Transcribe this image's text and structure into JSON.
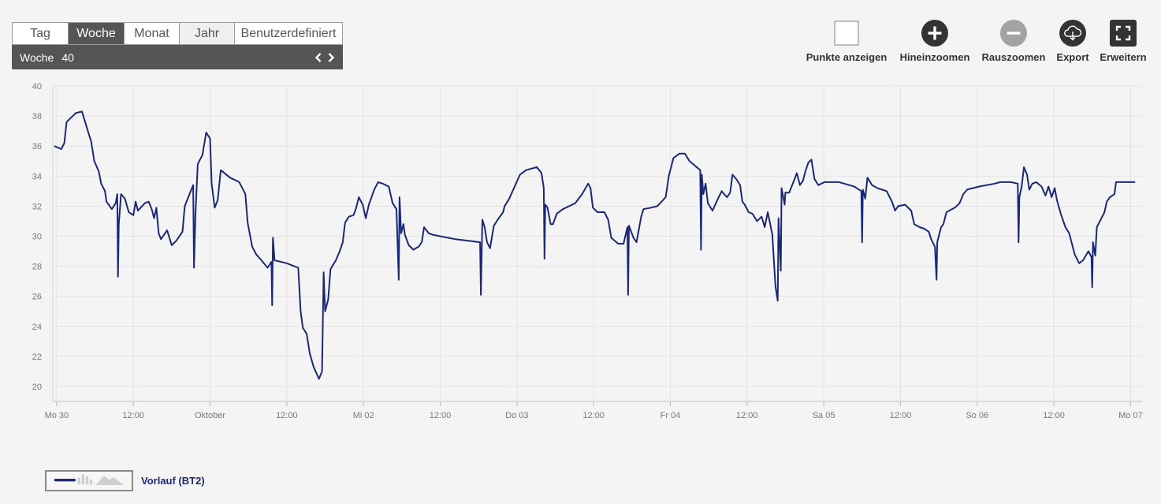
{
  "period_tabs": [
    {
      "label": "Tag",
      "state": "normal"
    },
    {
      "label": "Woche",
      "state": "active"
    },
    {
      "label": "Monat",
      "state": "normal"
    },
    {
      "label": "Jahr",
      "state": "light"
    },
    {
      "label": "Benutzerdefiniert",
      "state": "normal"
    }
  ],
  "period_nav": {
    "unit_label": "Woche",
    "value": "40"
  },
  "toolbar": {
    "show_points_label": "Punkte anzeigen",
    "zoom_in_label": "Hineinzoomen",
    "zoom_out_label": "Rauszoomen",
    "export_label": "Export",
    "expand_label": "Erweitern"
  },
  "colors": {
    "series": "#1b2873",
    "tab_active": "#555555",
    "grid": "#e3e3e3"
  },
  "chart_data": {
    "type": "line",
    "x_unit": "hours since first tick (Mo 30)",
    "xlim": [
      -0.5,
      141.5
    ],
    "ylim": [
      19,
      40
    ],
    "y_ticks": [
      20,
      22,
      24,
      26,
      28,
      30,
      32,
      34,
      36,
      38,
      40
    ],
    "x_ticks": [
      {
        "x": 0,
        "label": "Mo 30"
      },
      {
        "x": 10,
        "label": "12:00"
      },
      {
        "x": 20,
        "label": "Oktober"
      },
      {
        "x": 30,
        "label": "12:00"
      },
      {
        "x": 40,
        "label": "Mi 02"
      },
      {
        "x": 50,
        "label": "12:00"
      },
      {
        "x": 60,
        "label": "Do 03"
      },
      {
        "x": 70,
        "label": "12:00"
      },
      {
        "x": 80,
        "label": "Fr 04"
      },
      {
        "x": 90,
        "label": "12:00"
      },
      {
        "x": 100,
        "label": "Sa 05"
      },
      {
        "x": 110,
        "label": "12:00"
      },
      {
        "x": 120,
        "label": "So 06"
      },
      {
        "x": 130,
        "label": "12:00"
      },
      {
        "x": 140,
        "label": "Mo 07"
      }
    ],
    "grid": true,
    "series": [
      {
        "name": "Vorlauf (BT2)",
        "points": [
          [
            -0.3,
            36.0
          ],
          [
            0.6,
            35.8
          ],
          [
            1.0,
            36.2
          ],
          [
            1.3,
            37.6
          ],
          [
            2.5,
            38.2
          ],
          [
            3.3,
            38.3
          ],
          [
            4.2,
            36.8
          ],
          [
            4.5,
            36.3
          ],
          [
            4.9,
            35.0
          ],
          [
            5.5,
            34.3
          ],
          [
            5.8,
            33.5
          ],
          [
            6.3,
            33.0
          ],
          [
            6.5,
            32.3
          ],
          [
            7.2,
            31.8
          ],
          [
            7.7,
            32.2
          ],
          [
            7.9,
            32.8
          ],
          [
            8.0,
            27.3
          ],
          [
            8.1,
            30.8
          ],
          [
            8.4,
            32.8
          ],
          [
            8.9,
            32.5
          ],
          [
            9.4,
            31.6
          ],
          [
            10.0,
            31.4
          ],
          [
            10.3,
            32.3
          ],
          [
            10.6,
            31.7
          ],
          [
            11.5,
            32.2
          ],
          [
            12.0,
            32.3
          ],
          [
            12.4,
            31.8
          ],
          [
            12.7,
            31.2
          ],
          [
            13.0,
            31.9
          ],
          [
            13.3,
            30.2
          ],
          [
            13.6,
            29.8
          ],
          [
            14.4,
            30.4
          ],
          [
            15.0,
            29.4
          ],
          [
            15.6,
            29.7
          ],
          [
            16.4,
            30.3
          ],
          [
            16.7,
            32.0
          ],
          [
            17.4,
            32.9
          ],
          [
            17.8,
            33.4
          ],
          [
            17.9,
            27.9
          ],
          [
            18.1,
            31.5
          ],
          [
            18.4,
            34.8
          ],
          [
            19.0,
            35.4
          ],
          [
            19.5,
            36.9
          ],
          [
            20.0,
            36.5
          ],
          [
            20.2,
            33.5
          ],
          [
            20.6,
            31.9
          ],
          [
            21.0,
            32.4
          ],
          [
            21.4,
            34.4
          ],
          [
            22.6,
            33.9
          ],
          [
            23.8,
            33.6
          ],
          [
            24.6,
            32.8
          ],
          [
            24.9,
            30.9
          ],
          [
            25.5,
            29.3
          ],
          [
            26.0,
            28.8
          ],
          [
            26.7,
            28.4
          ],
          [
            27.5,
            27.9
          ],
          [
            28.0,
            28.3
          ],
          [
            28.1,
            25.4
          ],
          [
            28.2,
            29.9
          ],
          [
            28.4,
            28.4
          ],
          [
            30.0,
            28.2
          ],
          [
            31.5,
            27.9
          ],
          [
            31.8,
            25.0
          ],
          [
            32.1,
            23.9
          ],
          [
            32.6,
            23.5
          ],
          [
            33.0,
            22.2
          ],
          [
            33.5,
            21.3
          ],
          [
            34.2,
            20.5
          ],
          [
            34.6,
            21.0
          ],
          [
            34.8,
            27.6
          ],
          [
            35.0,
            25.0
          ],
          [
            35.4,
            25.8
          ],
          [
            35.7,
            27.8
          ],
          [
            36.4,
            28.4
          ],
          [
            36.9,
            29.0
          ],
          [
            37.3,
            29.6
          ],
          [
            37.6,
            30.9
          ],
          [
            38.1,
            31.3
          ],
          [
            38.7,
            31.4
          ],
          [
            39.0,
            31.8
          ],
          [
            39.4,
            32.6
          ],
          [
            39.9,
            32.1
          ],
          [
            40.3,
            31.2
          ],
          [
            40.7,
            32.1
          ],
          [
            41.4,
            33.1
          ],
          [
            41.9,
            33.6
          ],
          [
            42.5,
            33.5
          ],
          [
            43.3,
            33.3
          ],
          [
            43.8,
            32.2
          ],
          [
            44.3,
            31.8
          ],
          [
            44.6,
            27.1
          ],
          [
            44.7,
            32.6
          ],
          [
            44.9,
            30.2
          ],
          [
            45.2,
            30.8
          ],
          [
            45.4,
            30.1
          ],
          [
            45.9,
            29.4
          ],
          [
            46.5,
            29.1
          ],
          [
            47.2,
            29.3
          ],
          [
            47.6,
            29.6
          ],
          [
            47.9,
            30.6
          ],
          [
            48.5,
            30.2
          ],
          [
            49.0,
            30.1
          ],
          [
            52.0,
            29.8
          ],
          [
            55.2,
            29.6
          ],
          [
            55.3,
            26.1
          ],
          [
            55.5,
            31.1
          ],
          [
            55.8,
            30.6
          ],
          [
            56.1,
            29.6
          ],
          [
            56.5,
            29.2
          ],
          [
            57.0,
            30.7
          ],
          [
            57.5,
            31.1
          ],
          [
            58.2,
            31.6
          ],
          [
            58.4,
            32.0
          ],
          [
            59.0,
            32.5
          ],
          [
            59.7,
            33.3
          ],
          [
            60.4,
            34.1
          ],
          [
            61.2,
            34.4
          ],
          [
            62.6,
            34.6
          ],
          [
            63.2,
            34.2
          ],
          [
            63.5,
            33.2
          ],
          [
            63.6,
            28.5
          ],
          [
            63.7,
            32.1
          ],
          [
            64.0,
            31.9
          ],
          [
            64.4,
            30.8
          ],
          [
            64.7,
            30.8
          ],
          [
            65.2,
            31.5
          ],
          [
            66.0,
            31.8
          ],
          [
            67.6,
            32.2
          ],
          [
            68.5,
            32.8
          ],
          [
            69.3,
            33.5
          ],
          [
            69.6,
            33.2
          ],
          [
            69.9,
            31.9
          ],
          [
            70.5,
            31.6
          ],
          [
            71.4,
            31.6
          ],
          [
            71.9,
            31.1
          ],
          [
            72.3,
            29.9
          ],
          [
            73.2,
            29.5
          ],
          [
            73.9,
            29.5
          ],
          [
            74.4,
            30.6
          ],
          [
            74.5,
            26.1
          ],
          [
            74.6,
            30.7
          ],
          [
            75.2,
            29.9
          ],
          [
            75.6,
            29.6
          ],
          [
            76.2,
            31.3
          ],
          [
            76.5,
            31.8
          ],
          [
            77.5,
            31.9
          ],
          [
            78.3,
            32.0
          ],
          [
            79.4,
            32.6
          ],
          [
            79.8,
            34.0
          ],
          [
            80.4,
            35.2
          ],
          [
            81.2,
            35.5
          ],
          [
            81.9,
            35.5
          ],
          [
            82.5,
            35.0
          ],
          [
            83.2,
            34.7
          ],
          [
            83.9,
            34.4
          ],
          [
            84.0,
            29.1
          ],
          [
            84.1,
            34.1
          ],
          [
            84.3,
            32.8
          ],
          [
            84.6,
            33.5
          ],
          [
            84.9,
            32.2
          ],
          [
            85.5,
            31.7
          ],
          [
            86.3,
            32.6
          ],
          [
            86.7,
            33.0
          ],
          [
            87.0,
            32.8
          ],
          [
            87.4,
            32.6
          ],
          [
            87.8,
            32.9
          ],
          [
            88.1,
            34.1
          ],
          [
            88.6,
            33.8
          ],
          [
            89.1,
            33.4
          ],
          [
            89.4,
            32.3
          ],
          [
            89.7,
            32.1
          ],
          [
            90.2,
            31.6
          ],
          [
            90.7,
            31.5
          ],
          [
            91.3,
            31.0
          ],
          [
            91.9,
            31.3
          ],
          [
            92.3,
            30.6
          ],
          [
            92.7,
            31.6
          ],
          [
            93.3,
            30.1
          ],
          [
            93.7,
            26.7
          ],
          [
            94.0,
            25.7
          ],
          [
            94.1,
            31.2
          ],
          [
            94.4,
            27.7
          ],
          [
            94.5,
            33.2
          ],
          [
            94.9,
            32.1
          ],
          [
            95.0,
            32.9
          ],
          [
            95.5,
            32.9
          ],
          [
            96.2,
            33.8
          ],
          [
            96.5,
            34.2
          ],
          [
            96.9,
            33.4
          ],
          [
            97.3,
            33.7
          ],
          [
            97.6,
            34.3
          ],
          [
            98.0,
            34.9
          ],
          [
            98.4,
            35.1
          ],
          [
            98.8,
            33.8
          ],
          [
            99.3,
            33.4
          ],
          [
            100.1,
            33.6
          ],
          [
            102.0,
            33.6
          ],
          [
            104.0,
            33.3
          ],
          [
            104.9,
            33.0
          ],
          [
            105.0,
            29.6
          ],
          [
            105.1,
            33.1
          ],
          [
            105.4,
            32.5
          ],
          [
            105.7,
            33.9
          ],
          [
            106.3,
            33.4
          ],
          [
            107.0,
            33.2
          ],
          [
            108.2,
            33.0
          ],
          [
            108.9,
            32.3
          ],
          [
            109.3,
            31.7
          ],
          [
            109.7,
            32.0
          ],
          [
            110.6,
            32.1
          ],
          [
            111.4,
            31.7
          ],
          [
            111.8,
            30.8
          ],
          [
            112.5,
            30.6
          ],
          [
            113.1,
            30.5
          ],
          [
            113.7,
            30.3
          ],
          [
            114.0,
            29.8
          ],
          [
            114.5,
            29.3
          ],
          [
            114.7,
            27.1
          ],
          [
            114.8,
            29.6
          ],
          [
            115.3,
            30.6
          ],
          [
            115.6,
            30.8
          ],
          [
            116.0,
            31.6
          ],
          [
            117.1,
            31.9
          ],
          [
            117.7,
            32.2
          ],
          [
            118.2,
            32.8
          ],
          [
            118.7,
            33.1
          ],
          [
            120.2,
            33.3
          ],
          [
            122.3,
            33.5
          ],
          [
            123.0,
            33.6
          ],
          [
            124.4,
            33.6
          ],
          [
            125.3,
            33.5
          ],
          [
            125.4,
            29.6
          ],
          [
            125.5,
            32.6
          ],
          [
            125.8,
            33.3
          ],
          [
            126.1,
            34.6
          ],
          [
            126.5,
            34.1
          ],
          [
            126.8,
            33.1
          ],
          [
            127.2,
            33.5
          ],
          [
            127.7,
            33.6
          ],
          [
            128.4,
            33.3
          ],
          [
            128.9,
            32.7
          ],
          [
            129.3,
            33.3
          ],
          [
            129.7,
            32.6
          ],
          [
            130.1,
            33.2
          ],
          [
            130.4,
            32.4
          ],
          [
            130.9,
            31.5
          ],
          [
            131.5,
            30.6
          ],
          [
            132.0,
            30.2
          ],
          [
            132.3,
            29.6
          ],
          [
            132.7,
            28.8
          ],
          [
            133.3,
            28.2
          ],
          [
            133.8,
            28.4
          ],
          [
            134.5,
            29.0
          ],
          [
            134.9,
            28.6
          ],
          [
            135.0,
            26.6
          ],
          [
            135.1,
            29.6
          ],
          [
            135.4,
            28.7
          ],
          [
            135.6,
            30.6
          ],
          [
            136.0,
            31.0
          ],
          [
            136.6,
            31.6
          ],
          [
            136.9,
            32.3
          ],
          [
            137.3,
            32.6
          ],
          [
            137.9,
            32.8
          ],
          [
            138.1,
            33.6
          ],
          [
            138.7,
            33.6
          ],
          [
            140.6,
            33.6
          ]
        ]
      }
    ]
  },
  "legend": {
    "series_label": "Vorlauf (BT2)"
  }
}
